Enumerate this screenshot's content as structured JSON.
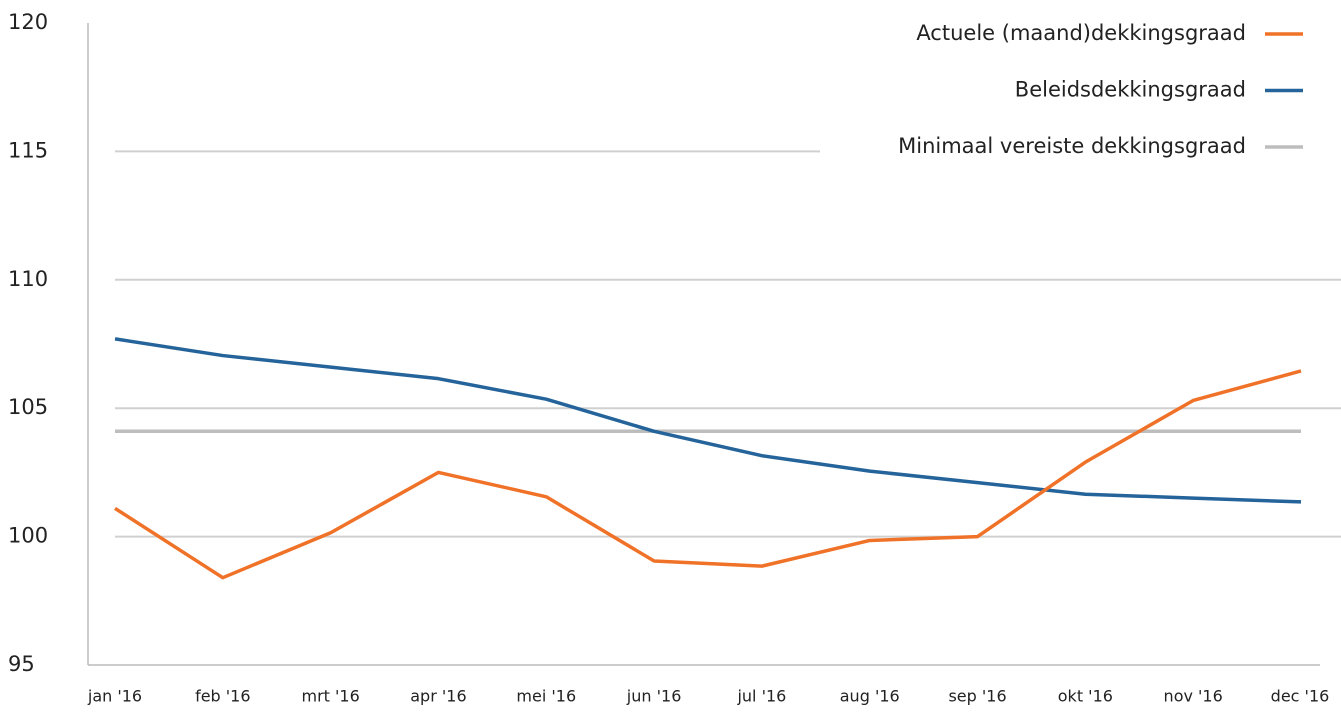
{
  "chart_data": {
    "type": "line",
    "categories": [
      "jan '16",
      "feb '16",
      "mrt '16",
      "apr '16",
      "mei '16",
      "jun '16",
      "jul '16",
      "aug '16",
      "sep '16",
      "okt '16",
      "nov '16",
      "dec '16"
    ],
    "series": [
      {
        "name": "Actuele (maand)dekkingsgraad",
        "color": "#f07228",
        "values": [
          101.1,
          98.4,
          100.15,
          102.5,
          101.55,
          99.05,
          98.85,
          99.85,
          100.0,
          102.9,
          105.3,
          106.45
        ]
      },
      {
        "name": "Beleidsdekkingsgraad",
        "color": "#25649a",
        "values": [
          107.7,
          107.05,
          106.6,
          106.15,
          105.35,
          104.1,
          103.15,
          102.55,
          102.1,
          101.65,
          101.5,
          101.35
        ]
      },
      {
        "name": "Minimaal vereiste dekkingsgraad",
        "color": "#bdbdbd",
        "values": [
          104.1,
          104.1,
          104.1,
          104.1,
          104.1,
          104.1,
          104.1,
          104.1,
          104.1,
          104.1,
          104.1,
          104.1
        ]
      }
    ],
    "ylim": [
      95,
      120
    ],
    "yticks": [
      95,
      100,
      105,
      110,
      115,
      120
    ],
    "grid": true,
    "legend": "top-right"
  }
}
